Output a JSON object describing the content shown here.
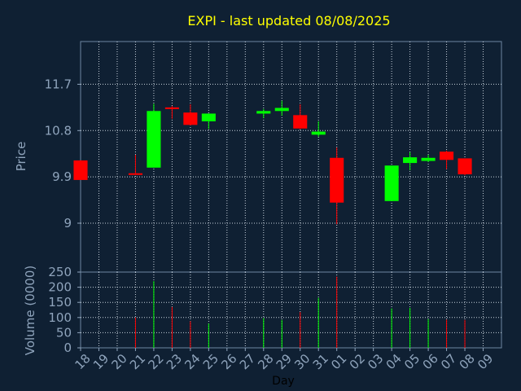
{
  "chart_data": {
    "type": "candlestick",
    "title": "EXPI - last updated 08/08/2025",
    "xlabel": "Day",
    "ylabel": "Price",
    "volume_label": "Volume (0000)",
    "colors": {
      "background": "#0f2033",
      "plot_border": "#6e86a0",
      "grid": "#c8d2dc",
      "title": "#ffff00",
      "axis_text": "#8fa4bc",
      "up": "#00ff00",
      "down": "#ff0000",
      "xlabel": "#000000"
    },
    "price_ticks": [
      "11.7",
      "10.8",
      "9.9",
      "9"
    ],
    "price_tick_values": [
      11.7,
      10.8,
      9.9,
      9.0
    ],
    "price_ylim": [
      8.05,
      12.53
    ],
    "volume_ticks": [
      "250",
      "200",
      "150",
      "100",
      "50",
      "0"
    ],
    "volume_tick_values": [
      250,
      200,
      150,
      100,
      50,
      0
    ],
    "volume_ylim": [
      0,
      250
    ],
    "x_labels": [
      "18",
      "19",
      "20",
      "21",
      "22",
      "23",
      "24",
      "25",
      "26",
      "27",
      "28",
      "29",
      "30",
      "31",
      "01",
      "02",
      "03",
      "04",
      "05",
      "06",
      "07",
      "08",
      "09"
    ],
    "candles": [
      {
        "day": "18",
        "open": 10.22,
        "high": 10.22,
        "low": 9.84,
        "close": 9.84,
        "volume": 0
      },
      {
        "day": "21",
        "open": 9.97,
        "high": 10.33,
        "low": 9.95,
        "close": 9.95,
        "volume": 100
      },
      {
        "day": "22",
        "open": 10.08,
        "high": 11.32,
        "low": 10.08,
        "close": 11.18,
        "volume": 220
      },
      {
        "day": "23",
        "open": 11.25,
        "high": 11.28,
        "low": 11.03,
        "close": 11.22,
        "volume": 135
      },
      {
        "day": "24",
        "open": 11.15,
        "high": 11.31,
        "low": 10.9,
        "close": 10.91,
        "volume": 88
      },
      {
        "day": "25",
        "open": 10.98,
        "high": 11.13,
        "low": 10.83,
        "close": 11.13,
        "volume": 80
      },
      {
        "day": "28",
        "open": 11.13,
        "high": 11.22,
        "low": 11.04,
        "close": 11.18,
        "volume": 98
      },
      {
        "day": "29",
        "open": 11.18,
        "high": 11.38,
        "low": 11.09,
        "close": 11.24,
        "volume": 92
      },
      {
        "day": "30",
        "open": 11.1,
        "high": 11.31,
        "low": 10.83,
        "close": 10.84,
        "volume": 118
      },
      {
        "day": "31",
        "open": 10.72,
        "high": 10.98,
        "low": 10.68,
        "close": 10.78,
        "volume": 165
      },
      {
        "day": "01",
        "open": 10.27,
        "high": 10.47,
        "low": 8.98,
        "close": 9.4,
        "volume": 235
      },
      {
        "day": "04",
        "open": 9.43,
        "high": 10.12,
        "low": 9.43,
        "close": 10.12,
        "volume": 130
      },
      {
        "day": "05",
        "open": 10.17,
        "high": 10.38,
        "low": 10.03,
        "close": 10.28,
        "volume": 132
      },
      {
        "day": "06",
        "open": 10.21,
        "high": 10.33,
        "low": 10.19,
        "close": 10.27,
        "volume": 95
      },
      {
        "day": "07",
        "open": 10.39,
        "high": 10.41,
        "low": 10.05,
        "close": 10.23,
        "volume": 93
      },
      {
        "day": "08",
        "open": 10.26,
        "high": 10.26,
        "low": 9.93,
        "close": 9.95,
        "volume": 92
      }
    ]
  }
}
